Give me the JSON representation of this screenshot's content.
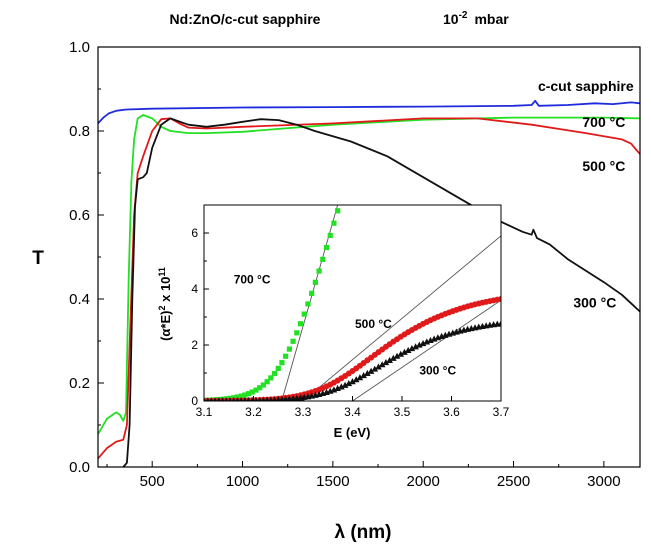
{
  "chart_data": [
    {
      "type": "line",
      "title": "Nd:ZnO/c-cut sapphire",
      "subtitle_base": "10",
      "subtitle_exp": "-2",
      "subtitle_unit": "mbar",
      "xlabel": "λ (nm)",
      "ylabel": "T",
      "xlim": [
        200,
        3200
      ],
      "ylim": [
        0.0,
        1.0
      ],
      "x_ticks": [
        500,
        1000,
        1500,
        2000,
        2500,
        3000
      ],
      "y_ticks": [
        "0.0",
        "0.2",
        "0.4",
        "0.6",
        "0.8",
        "1.0"
      ],
      "grid": false,
      "series": [
        {
          "name": "c-cut sapphire",
          "color": "#1f2bdc",
          "points": [
            [
              200,
              0.818
            ],
            [
              230,
              0.832
            ],
            [
              260,
              0.842
            ],
            [
              300,
              0.848
            ],
            [
              350,
              0.851
            ],
            [
              500,
              0.853
            ],
            [
              1000,
              0.856
            ],
            [
              1500,
              0.857
            ],
            [
              2000,
              0.858
            ],
            [
              2500,
              0.86
            ],
            [
              2600,
              0.862
            ],
            [
              2620,
              0.872
            ],
            [
              2640,
              0.86
            ],
            [
              2800,
              0.862
            ],
            [
              2950,
              0.866
            ],
            [
              3050,
              0.864
            ],
            [
              3150,
              0.868
            ],
            [
              3200,
              0.866
            ]
          ]
        },
        {
          "name": "700 °C",
          "color": "#22e022",
          "points": [
            [
              200,
              0.078
            ],
            [
              250,
              0.115
            ],
            [
              300,
              0.13
            ],
            [
              320,
              0.125
            ],
            [
              340,
              0.11
            ],
            [
              355,
              0.13
            ],
            [
              370,
              0.45
            ],
            [
              385,
              0.68
            ],
            [
              400,
              0.78
            ],
            [
              420,
              0.83
            ],
            [
              450,
              0.838
            ],
            [
              500,
              0.83
            ],
            [
              550,
              0.81
            ],
            [
              600,
              0.8
            ],
            [
              700,
              0.795
            ],
            [
              800,
              0.795
            ],
            [
              1000,
              0.798
            ],
            [
              1200,
              0.805
            ],
            [
              1500,
              0.815
            ],
            [
              2000,
              0.827
            ],
            [
              2500,
              0.832
            ],
            [
              3000,
              0.832
            ],
            [
              3200,
              0.83
            ]
          ]
        },
        {
          "name": "500 °C",
          "color": "#e01a1a",
          "points": [
            [
              200,
              0.02
            ],
            [
              250,
              0.045
            ],
            [
              300,
              0.06
            ],
            [
              340,
              0.065
            ],
            [
              360,
              0.1
            ],
            [
              380,
              0.35
            ],
            [
              400,
              0.6
            ],
            [
              420,
              0.7
            ],
            [
              450,
              0.74
            ],
            [
              500,
              0.8
            ],
            [
              550,
              0.828
            ],
            [
              600,
              0.83
            ],
            [
              650,
              0.818
            ],
            [
              700,
              0.808
            ],
            [
              800,
              0.806
            ],
            [
              1000,
              0.81
            ],
            [
              1500,
              0.818
            ],
            [
              2000,
              0.83
            ],
            [
              2300,
              0.83
            ],
            [
              2600,
              0.815
            ],
            [
              2900,
              0.795
            ],
            [
              3100,
              0.78
            ],
            [
              3150,
              0.77
            ],
            [
              3200,
              0.745
            ]
          ]
        },
        {
          "name": "300 °C",
          "color": "#111111",
          "points": [
            [
              340,
              0.0
            ],
            [
              360,
              0.01
            ],
            [
              375,
              0.1
            ],
            [
              390,
              0.4
            ],
            [
              405,
              0.62
            ],
            [
              420,
              0.685
            ],
            [
              450,
              0.69
            ],
            [
              470,
              0.7
            ],
            [
              500,
              0.76
            ],
            [
              550,
              0.815
            ],
            [
              600,
              0.83
            ],
            [
              700,
              0.815
            ],
            [
              800,
              0.81
            ],
            [
              900,
              0.815
            ],
            [
              1000,
              0.822
            ],
            [
              1100,
              0.828
            ],
            [
              1200,
              0.826
            ],
            [
              1300,
              0.815
            ],
            [
              1400,
              0.8
            ],
            [
              1600,
              0.775
            ],
            [
              1800,
              0.74
            ],
            [
              2000,
              0.69
            ],
            [
              2200,
              0.64
            ],
            [
              2400,
              0.59
            ],
            [
              2550,
              0.56
            ],
            [
              2600,
              0.553
            ],
            [
              2610,
              0.565
            ],
            [
              2630,
              0.545
            ],
            [
              2700,
              0.53
            ],
            [
              2800,
              0.495
            ],
            [
              3000,
              0.44
            ],
            [
              3100,
              0.41
            ],
            [
              3200,
              0.37
            ]
          ]
        }
      ],
      "annotations": [
        {
          "text": "c-cut sapphire",
          "x": 2900,
          "y": 0.895
        },
        {
          "text": "700 °C",
          "x": 3000,
          "y": 0.81
        },
        {
          "text": "500 °C",
          "x": 3000,
          "y": 0.705
        },
        {
          "text": "300 °C",
          "x": 2950,
          "y": 0.38
        }
      ]
    },
    {
      "type": "scatter",
      "xlabel": "E (eV)",
      "ylabel_base": "(α*E)",
      "ylabel_sup1": "2",
      "ylabel_mid": " x 10",
      "ylabel_sup2": "11",
      "xlim": [
        3.1,
        3.7
      ],
      "ylim": [
        0,
        7
      ],
      "x_ticks": [
        "3.1",
        "3.2",
        "3.3",
        "3.4",
        "3.5",
        "3.6",
        "3.7"
      ],
      "y_ticks": [
        "0",
        "2",
        "4",
        "6"
      ],
      "series": [
        {
          "name": "700 °C",
          "color": "#22e022",
          "marker": "square",
          "E0": 3.262,
          "slope": 62.0,
          "soft": 0.035,
          "ymax": 7.3
        },
        {
          "name": "500 °C",
          "color": "#e01a1a",
          "marker": "circle",
          "E0": 3.35,
          "slope": 17.5,
          "soft": 0.045,
          "sat": 4.0,
          "satk": 0.07
        },
        {
          "name": "300 °C",
          "color": "#111111",
          "marker": "triangle",
          "E0": 3.37,
          "slope": 14.5,
          "soft": 0.045,
          "sat": 3.0,
          "satk": 0.06
        }
      ],
      "fit_lines": [
        {
          "x": [
            3.257,
            3.37
          ],
          "y": [
            0,
            7
          ]
        },
        {
          "x": [
            3.3,
            3.7
          ],
          "y": [
            0,
            5.9
          ]
        },
        {
          "x": [
            3.4,
            3.7
          ],
          "y": [
            0,
            3.6
          ]
        }
      ],
      "annotations": [
        {
          "text": "700 °C",
          "x": 3.16,
          "y": 4.2
        },
        {
          "text": "500 °C",
          "x": 3.405,
          "y": 2.6
        },
        {
          "text": "300 °C",
          "x": 3.535,
          "y": 0.95
        }
      ]
    }
  ]
}
